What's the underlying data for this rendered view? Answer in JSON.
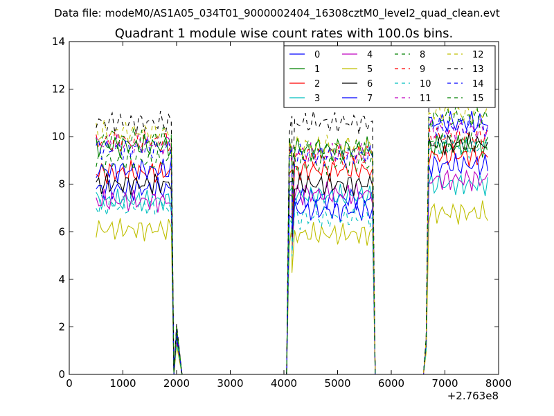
{
  "chart_data": {
    "type": "line",
    "suptitle": "Data file: modeM0/AS1A05_034T01_9000002404_16308cztM0_level2_quad_clean.evt",
    "title": "Quadrant 1 module wise count rates with 100.0s bins.",
    "xlabel": "",
    "ylabel": "",
    "x_offset_label": "+2.763e8",
    "xlim": [
      0,
      8000
    ],
    "ylim": [
      0,
      14
    ],
    "x_ticks": [
      0,
      1000,
      2000,
      3000,
      4000,
      5000,
      6000,
      7000,
      8000
    ],
    "y_ticks": [
      0,
      2,
      4,
      6,
      8,
      10,
      12,
      14
    ],
    "x_tick_labels": [
      "0",
      "1000",
      "2000",
      "3000",
      "4000",
      "5000",
      "6000",
      "7000",
      "8000"
    ],
    "y_tick_labels": [
      "0",
      "2",
      "4",
      "6",
      "8",
      "10",
      "12",
      "14"
    ],
    "grid": false,
    "legend_position": "top-right",
    "segments": [
      {
        "start": 500,
        "end": 1900,
        "step": 50
      },
      {
        "start": 4100,
        "end": 5650,
        "step": 50
      },
      {
        "start": 6700,
        "end": 7800,
        "step": 50
      }
    ],
    "zero_x": [
      1950,
      2100,
      2200,
      4050,
      5700,
      5750,
      6600
    ],
    "edges": [
      {
        "x": 2000,
        "f": 0.2
      },
      {
        "x": 4150,
        "f": 0.7
      },
      {
        "x": 6650,
        "f": 0.15
      }
    ],
    "series": [
      {
        "name": "0",
        "color": "#0000ff",
        "dash": "solid",
        "levels": [
          7.8,
          7.4,
          10.6
        ]
      },
      {
        "name": "1",
        "color": "#008000",
        "dash": "solid",
        "levels": [
          9.6,
          9.5,
          9.6
        ]
      },
      {
        "name": "2",
        "color": "#ff0000",
        "dash": "solid",
        "levels": [
          8.5,
          8.6,
          9.2
        ]
      },
      {
        "name": "3",
        "color": "#00bfbf",
        "dash": "solid",
        "levels": [
          7.3,
          7.5,
          8.0
        ]
      },
      {
        "name": "4",
        "color": "#bf00bf",
        "dash": "solid",
        "levels": [
          7.3,
          7.6,
          8.2
        ]
      },
      {
        "name": "5",
        "color": "#bfbf00",
        "dash": "solid",
        "levels": [
          6.1,
          5.9,
          6.8
        ]
      },
      {
        "name": "6",
        "color": "#000000",
        "dash": "solid",
        "levels": [
          8.0,
          8.0,
          9.7
        ]
      },
      {
        "name": "7",
        "color": "#0000ff",
        "dash": "solid",
        "levels": [
          8.6,
          6.9,
          8.8
        ]
      },
      {
        "name": "8",
        "color": "#008000",
        "dash": "dashed",
        "levels": [
          9.0,
          8.9,
          9.7
        ]
      },
      {
        "name": "9",
        "color": "#ff0000",
        "dash": "dashed",
        "levels": [
          9.8,
          9.2,
          10.0
        ]
      },
      {
        "name": "10",
        "color": "#00bfbf",
        "dash": "dashed",
        "levels": [
          7.1,
          6.6,
          9.6
        ]
      },
      {
        "name": "11",
        "color": "#bf00bf",
        "dash": "dashed",
        "levels": [
          9.7,
          9.3,
          10.3
        ]
      },
      {
        "name": "12",
        "color": "#bfbf00",
        "dash": "dashed",
        "levels": [
          10.2,
          9.6,
          11.0
        ]
      },
      {
        "name": "13",
        "color": "#000000",
        "dash": "dashed",
        "levels": [
          10.6,
          10.6,
          11.8
        ]
      },
      {
        "name": "14",
        "color": "#0000ff",
        "dash": "dashed",
        "levels": [
          9.5,
          9.2,
          10.4
        ]
      },
      {
        "name": "15",
        "color": "#008000",
        "dash": "dashed",
        "levels": [
          9.9,
          9.4,
          10.8
        ]
      }
    ]
  }
}
